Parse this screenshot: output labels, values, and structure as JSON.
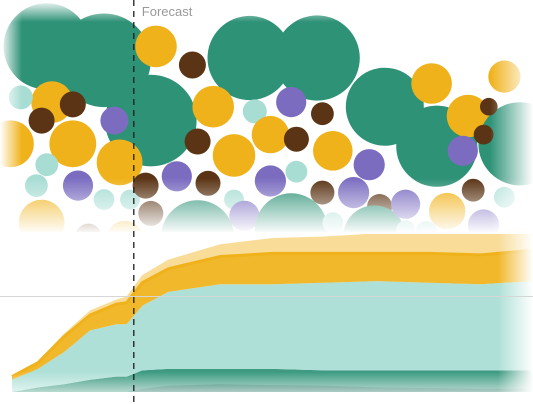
{
  "chart_data": [
    {
      "type": "packed-bubble",
      "annotation": "Forecast",
      "split_position": 0.19,
      "colors": {
        "large": "#2e9277",
        "gold": "#f0b21a",
        "dark": "#5a3414",
        "purple": "#7b6cc0",
        "aqua": "#a8ddd4"
      },
      "bubbles": [
        {
          "cat": "large",
          "x": 0.09,
          "y": 0.2,
          "r": 0.083
        },
        {
          "cat": "large",
          "x": 0.2,
          "y": 0.26,
          "r": 0.09
        },
        {
          "cat": "gold",
          "x": 0.1,
          "y": 0.44,
          "r": 0.04
        },
        {
          "cat": "gold",
          "x": 0.3,
          "y": 0.2,
          "r": 0.04
        },
        {
          "cat": "dark",
          "x": 0.37,
          "y": 0.28,
          "r": 0.026
        },
        {
          "cat": "large",
          "x": 0.48,
          "y": 0.25,
          "r": 0.081
        },
        {
          "cat": "large",
          "x": 0.61,
          "y": 0.25,
          "r": 0.082
        },
        {
          "cat": "large",
          "x": 0.29,
          "y": 0.52,
          "r": 0.088
        },
        {
          "cat": "gold",
          "x": 0.41,
          "y": 0.46,
          "r": 0.04
        },
        {
          "cat": "aqua",
          "x": 0.49,
          "y": 0.48,
          "r": 0.023
        },
        {
          "cat": "purple",
          "x": 0.56,
          "y": 0.44,
          "r": 0.029
        },
        {
          "cat": "dark",
          "x": 0.62,
          "y": 0.49,
          "r": 0.022
        },
        {
          "cat": "large",
          "x": 0.74,
          "y": 0.46,
          "r": 0.075
        },
        {
          "cat": "large",
          "x": 0.84,
          "y": 0.63,
          "r": 0.078
        },
        {
          "cat": "gold",
          "x": 0.83,
          "y": 0.36,
          "r": 0.039
        },
        {
          "cat": "gold",
          "x": 0.9,
          "y": 0.5,
          "r": 0.041
        },
        {
          "cat": "gold",
          "x": 0.97,
          "y": 0.33,
          "r": 0.031
        },
        {
          "cat": "large",
          "x": 1.0,
          "y": 0.62,
          "r": 0.08
        },
        {
          "cat": "aqua",
          "x": 0.04,
          "y": 0.42,
          "r": 0.023
        },
        {
          "cat": "dark",
          "x": 0.08,
          "y": 0.52,
          "r": 0.025
        },
        {
          "cat": "dark",
          "x": 0.14,
          "y": 0.45,
          "r": 0.025
        },
        {
          "cat": "purple",
          "x": 0.22,
          "y": 0.52,
          "r": 0.027
        },
        {
          "cat": "gold",
          "x": 0.02,
          "y": 0.62,
          "r": 0.045
        },
        {
          "cat": "gold",
          "x": 0.14,
          "y": 0.62,
          "r": 0.045
        },
        {
          "cat": "gold",
          "x": 0.23,
          "y": 0.7,
          "r": 0.044
        },
        {
          "cat": "aqua",
          "x": 0.09,
          "y": 0.71,
          "r": 0.022
        },
        {
          "cat": "purple",
          "x": 0.15,
          "y": 0.8,
          "r": 0.029
        },
        {
          "cat": "aqua",
          "x": 0.07,
          "y": 0.8,
          "r": 0.022
        },
        {
          "cat": "aqua",
          "x": 0.2,
          "y": 0.86,
          "r": 0.02
        },
        {
          "cat": "aqua",
          "x": 0.25,
          "y": 0.86,
          "r": 0.019
        },
        {
          "cat": "dark",
          "x": 0.28,
          "y": 0.8,
          "r": 0.025
        },
        {
          "cat": "gold",
          "x": 0.08,
          "y": 0.96,
          "r": 0.044
        },
        {
          "cat": "dark",
          "x": 0.17,
          "y": 1.02,
          "r": 0.025
        },
        {
          "cat": "gold",
          "x": 0.24,
          "y": 1.03,
          "r": 0.035
        },
        {
          "cat": "dark",
          "x": 0.29,
          "y": 0.92,
          "r": 0.024
        },
        {
          "cat": "purple",
          "x": 0.34,
          "y": 0.76,
          "r": 0.029
        },
        {
          "cat": "dark",
          "x": 0.38,
          "y": 0.61,
          "r": 0.025
        },
        {
          "cat": "dark",
          "x": 0.4,
          "y": 0.79,
          "r": 0.024
        },
        {
          "cat": "gold",
          "x": 0.45,
          "y": 0.67,
          "r": 0.041
        },
        {
          "cat": "aqua",
          "x": 0.45,
          "y": 0.86,
          "r": 0.019
        },
        {
          "cat": "purple",
          "x": 0.52,
          "y": 0.78,
          "r": 0.03
        },
        {
          "cat": "purple",
          "x": 0.47,
          "y": 0.93,
          "r": 0.029
        },
        {
          "cat": "large",
          "x": 0.38,
          "y": 1.02,
          "r": 0.07
        },
        {
          "cat": "large",
          "x": 0.56,
          "y": 0.99,
          "r": 0.07
        },
        {
          "cat": "gold",
          "x": 0.52,
          "y": 0.58,
          "r": 0.036
        },
        {
          "cat": "dark",
          "x": 0.57,
          "y": 0.6,
          "r": 0.024
        },
        {
          "cat": "aqua",
          "x": 0.57,
          "y": 0.74,
          "r": 0.021
        },
        {
          "cat": "gold",
          "x": 0.64,
          "y": 0.65,
          "r": 0.038
        },
        {
          "cat": "dark",
          "x": 0.62,
          "y": 0.83,
          "r": 0.023
        },
        {
          "cat": "purple",
          "x": 0.68,
          "y": 0.83,
          "r": 0.03
        },
        {
          "cat": "purple",
          "x": 0.71,
          "y": 0.71,
          "r": 0.03
        },
        {
          "cat": "aqua",
          "x": 0.64,
          "y": 0.96,
          "r": 0.02
        },
        {
          "cat": "dark",
          "x": 0.73,
          "y": 0.89,
          "r": 0.024
        },
        {
          "cat": "large",
          "x": 0.72,
          "y": 1.02,
          "r": 0.06
        },
        {
          "cat": "purple",
          "x": 0.78,
          "y": 0.88,
          "r": 0.028
        },
        {
          "cat": "aqua",
          "x": 0.82,
          "y": 1.0,
          "r": 0.021
        },
        {
          "cat": "gold",
          "x": 0.86,
          "y": 0.91,
          "r": 0.035
        },
        {
          "cat": "aqua",
          "x": 0.78,
          "y": 0.99,
          "r": 0.018
        },
        {
          "cat": "purple",
          "x": 0.89,
          "y": 0.65,
          "r": 0.029
        },
        {
          "cat": "dark",
          "x": 0.93,
          "y": 0.58,
          "r": 0.019
        },
        {
          "cat": "dark",
          "x": 0.91,
          "y": 0.82,
          "r": 0.022
        },
        {
          "cat": "purple",
          "x": 0.93,
          "y": 0.97,
          "r": 0.03
        },
        {
          "cat": "aqua",
          "x": 0.97,
          "y": 0.85,
          "r": 0.02
        },
        {
          "cat": "dark",
          "x": 0.94,
          "y": 0.46,
          "r": 0.017
        }
      ]
    },
    {
      "type": "area",
      "stacked": true,
      "x": [
        0,
        0.05,
        0.1,
        0.15,
        0.2,
        0.22,
        0.25,
        0.3,
        0.4,
        0.5,
        0.6,
        0.7,
        0.8,
        0.9,
        1.0
      ],
      "reference_line": 0.62,
      "colors": {
        "gold": "#f0b21a",
        "aqua": "#a8ddd4",
        "teal": "#2e9277",
        "dark": "#0f5c4a"
      },
      "series": [
        {
          "values": [
            0.0,
            0.03,
            0.05,
            0.08,
            0.1,
            0.1,
            0.14,
            0.15,
            0.15,
            0.15,
            0.14,
            0.14,
            0.14,
            0.14,
            0.14
          ]
        },
        {
          "values": [
            0.08,
            0.12,
            0.21,
            0.32,
            0.34,
            0.34,
            0.42,
            0.5,
            0.55,
            0.55,
            0.57,
            0.58,
            0.57,
            0.56,
            0.58
          ]
        },
        {
          "values": [
            0.02,
            0.04,
            0.1,
            0.1,
            0.13,
            0.14,
            0.15,
            0.15,
            0.18,
            0.2,
            0.19,
            0.18,
            0.19,
            0.19,
            0.2
          ]
        },
        {
          "values": [
            0.01,
            0.01,
            0.02,
            0.03,
            0.03,
            0.04,
            0.05,
            0.06,
            0.08,
            0.1,
            0.11,
            0.13,
            0.13,
            0.14,
            0.15
          ]
        }
      ]
    }
  ]
}
